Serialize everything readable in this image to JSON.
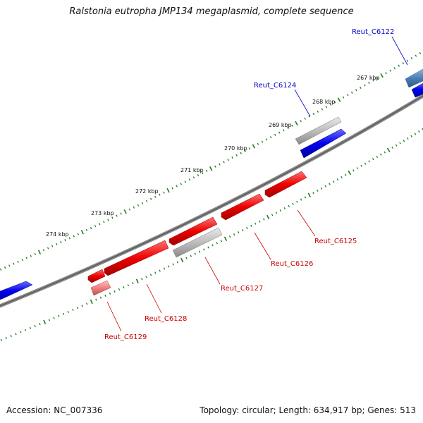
{
  "title": "Ralstonia eutropha JMP134 megaplasmid, complete sequence",
  "accession": "Accession: NC_007336",
  "summary": "Topology: circular; Length: 634,917 bp; Genes: 513",
  "colors": {
    "backbone": "#7a7a7a",
    "tick": "#1e7a1e",
    "forward_gene": "#0000ee",
    "reverse_gene": "#ee0000",
    "reverse_gene_light": "#f08080",
    "pseudogene": "#b8b8b8",
    "steel_gene": "#4a7fb5",
    "forward_label": "#0000cc",
    "reverse_label": "#cc0000"
  },
  "ticks": [
    {
      "label": "267 kbp"
    },
    {
      "label": "268 kbp"
    },
    {
      "label": "269 kbp"
    },
    {
      "label": "270 kbp"
    },
    {
      "label": "271 kbp"
    },
    {
      "label": "272 kbp"
    },
    {
      "label": "273 kbp"
    },
    {
      "label": "274 kbp"
    }
  ],
  "genes": [
    {
      "name": "Reut_C6122",
      "strand": "forward",
      "color": "steel"
    },
    {
      "name": "Reut_C6124",
      "strand": "forward",
      "color": "pseudo"
    },
    {
      "name": "Reut_C6125",
      "strand": "reverse",
      "color": "red"
    },
    {
      "name": "Reut_C6126",
      "strand": "reverse",
      "color": "red"
    },
    {
      "name": "Reut_C6127",
      "strand": "reverse",
      "color": "pseudo"
    },
    {
      "name": "Reut_C6128",
      "strand": "reverse",
      "color": "red"
    },
    {
      "name": "Reut_C6129",
      "strand": "reverse",
      "color": "lightred"
    }
  ]
}
